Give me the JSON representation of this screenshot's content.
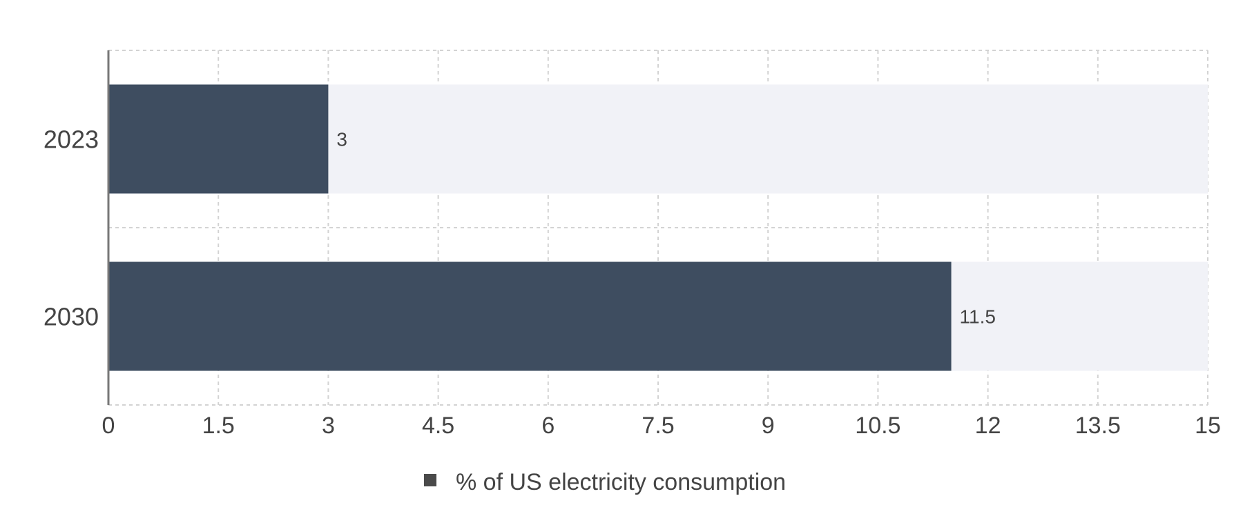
{
  "chart_data": {
    "type": "bar",
    "orientation": "horizontal",
    "categories": [
      "2023",
      "2030"
    ],
    "series": [
      {
        "name": "% of US electricity consumption",
        "values": [
          3,
          11.5
        ]
      }
    ],
    "xlim": [
      0,
      15
    ],
    "xticks": [
      "0",
      "1.5",
      "3",
      "4.5",
      "6",
      "7.5",
      "9",
      "10.5",
      "12",
      "13.5",
      "15"
    ],
    "data_labels": [
      "3",
      "11.5"
    ],
    "grid": true,
    "legend_position": "bottom",
    "colors": {
      "bar": "#3e4d60",
      "track": "#f1f2f7",
      "grid": "#d3d3d3",
      "axis": "#777777",
      "legend_marker": "#4a4a4a"
    }
  }
}
